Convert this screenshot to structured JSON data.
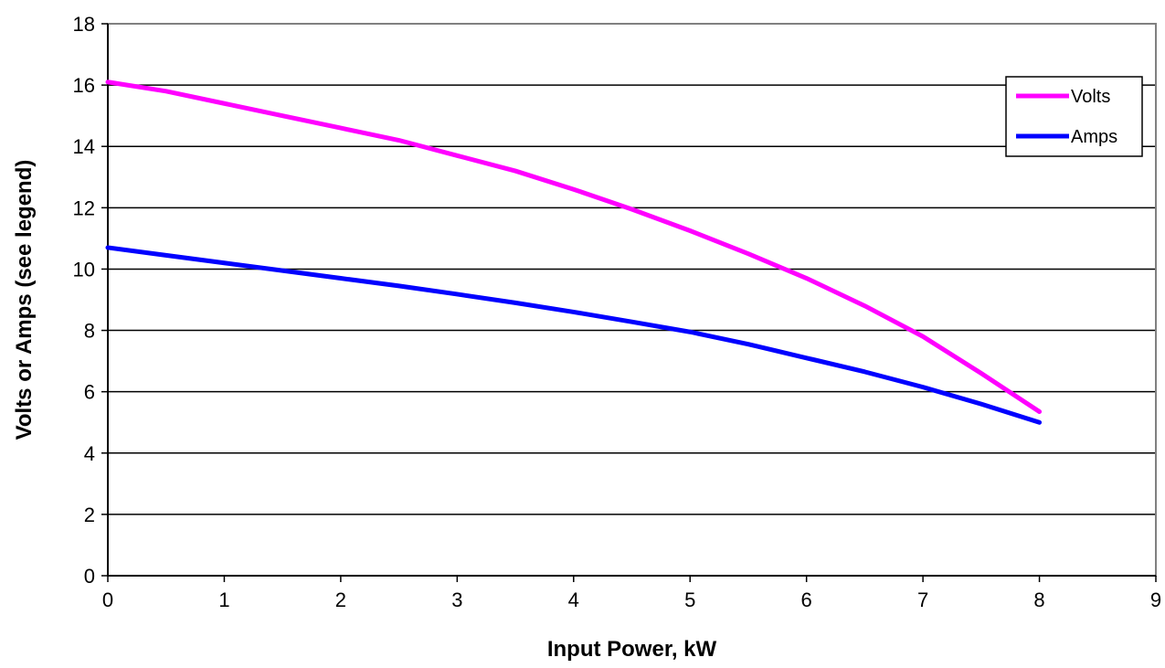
{
  "chart_data": {
    "type": "line",
    "title": "",
    "xlabel": "Input Power, kW",
    "ylabel": "Volts or Amps (see legend)",
    "xlim": [
      0,
      9
    ],
    "ylim": [
      0,
      18
    ],
    "x_ticks": [
      "0",
      "1",
      "2",
      "3",
      "4",
      "5",
      "6",
      "7",
      "8",
      "9"
    ],
    "y_ticks": [
      "0",
      "2",
      "4",
      "6",
      "8",
      "10",
      "12",
      "14",
      "16",
      "18"
    ],
    "grid": "horizontal",
    "legend_position": "top-right",
    "series": [
      {
        "name": "Volts",
        "color": "#ff00ff",
        "x": [
          0,
          0.5,
          1,
          1.5,
          2,
          2.5,
          3,
          3.5,
          4,
          4.5,
          5,
          5.5,
          6,
          6.5,
          7,
          7.5,
          8
        ],
        "y": [
          16.1,
          15.8,
          15.4,
          15.0,
          14.6,
          14.2,
          13.7,
          13.2,
          12.6,
          11.95,
          11.25,
          10.5,
          9.7,
          8.8,
          7.8,
          6.6,
          5.35
        ]
      },
      {
        "name": "Amps",
        "color": "#0000ff",
        "x": [
          0,
          0.5,
          1,
          1.5,
          2,
          2.5,
          3,
          3.5,
          4,
          4.5,
          5,
          5.5,
          6,
          6.5,
          7,
          7.5,
          8
        ],
        "y": [
          10.7,
          10.45,
          10.2,
          9.95,
          9.7,
          9.45,
          9.18,
          8.9,
          8.6,
          8.28,
          7.95,
          7.55,
          7.1,
          6.65,
          6.15,
          5.6,
          5.0
        ]
      }
    ]
  }
}
